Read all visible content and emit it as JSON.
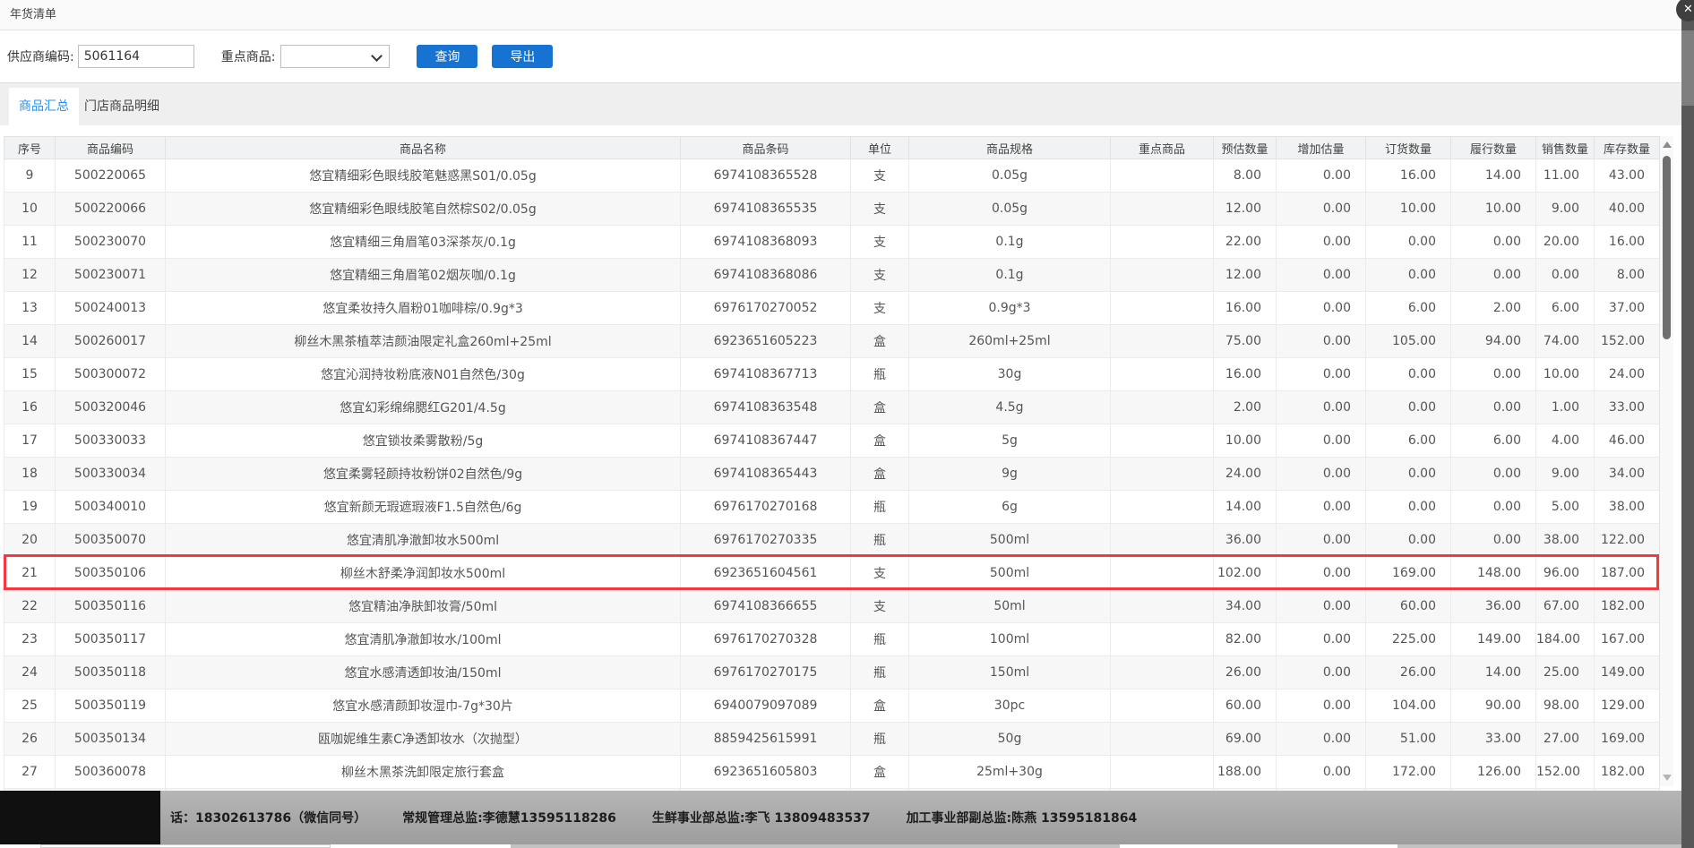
{
  "window": {
    "title": "年货清单",
    "close_icon": "✕"
  },
  "toolbar": {
    "supplier_label": "供应商编码:",
    "supplier_value": "5061164",
    "key_product_label": "重点商品:",
    "key_product_selected": "",
    "query_button": "查询",
    "export_button": "导出"
  },
  "tabs": [
    {
      "label": "商品汇总",
      "active": true
    },
    {
      "label": "门店商品明细",
      "active": false
    }
  ],
  "table": {
    "columns": [
      "序号",
      "商品编码",
      "商品名称",
      "商品条码",
      "单位",
      "商品规格",
      "重点商品",
      "预估数量",
      "增加估量",
      "订货数量",
      "履行数量",
      "销售数量",
      "库存数量"
    ],
    "highlight_row": "21",
    "rows": [
      [
        "9",
        "500220065",
        "悠宜精细彩色眼线胶笔魅惑黑S01/0.05g",
        "6974108365528",
        "支",
        "0.05g",
        "",
        "8.00",
        "0.00",
        "16.00",
        "14.00",
        "11.00",
        "43.00"
      ],
      [
        "10",
        "500220066",
        "悠宜精细彩色眼线胶笔自然棕S02/0.05g",
        "6974108365535",
        "支",
        "0.05g",
        "",
        "12.00",
        "0.00",
        "10.00",
        "10.00",
        "9.00",
        "40.00"
      ],
      [
        "11",
        "500230070",
        "悠宜精细三角眉笔03深茶灰/0.1g",
        "6974108368093",
        "支",
        "0.1g",
        "",
        "22.00",
        "0.00",
        "0.00",
        "0.00",
        "20.00",
        "16.00"
      ],
      [
        "12",
        "500230071",
        "悠宜精细三角眉笔02烟灰咖/0.1g",
        "6974108368086",
        "支",
        "0.1g",
        "",
        "12.00",
        "0.00",
        "0.00",
        "0.00",
        "0.00",
        "8.00"
      ],
      [
        "13",
        "500240013",
        "悠宜柔妆持久眉粉01咖啡棕/0.9g*3",
        "6976170270052",
        "支",
        "0.9g*3",
        "",
        "16.00",
        "0.00",
        "6.00",
        "2.00",
        "6.00",
        "37.00"
      ],
      [
        "14",
        "500260017",
        "柳丝木黑茶植萃洁颜油限定礼盒260ml+25ml",
        "6923651605223",
        "盒",
        "260ml+25ml",
        "",
        "75.00",
        "0.00",
        "105.00",
        "94.00",
        "74.00",
        "152.00"
      ],
      [
        "15",
        "500300072",
        "悠宜沁润持妆粉底液N01自然色/30g",
        "6974108367713",
        "瓶",
        "30g",
        "",
        "16.00",
        "0.00",
        "0.00",
        "0.00",
        "10.00",
        "24.00"
      ],
      [
        "16",
        "500320046",
        "悠宜幻彩绵绵腮红G201/4.5g",
        "6974108363548",
        "盒",
        "4.5g",
        "",
        "2.00",
        "0.00",
        "0.00",
        "0.00",
        "1.00",
        "33.00"
      ],
      [
        "17",
        "500330033",
        "悠宜锁妆柔雾散粉/5g",
        "6974108367447",
        "盒",
        "5g",
        "",
        "10.00",
        "0.00",
        "6.00",
        "6.00",
        "4.00",
        "46.00"
      ],
      [
        "18",
        "500330034",
        "悠宜柔雾轻颜持妆粉饼02自然色/9g",
        "6974108365443",
        "盒",
        "9g",
        "",
        "24.00",
        "0.00",
        "0.00",
        "0.00",
        "9.00",
        "34.00"
      ],
      [
        "19",
        "500340010",
        "悠宜新颜无瑕遮瑕液F1.5自然色/6g",
        "6976170270168",
        "瓶",
        "6g",
        "",
        "14.00",
        "0.00",
        "0.00",
        "0.00",
        "5.00",
        "38.00"
      ],
      [
        "20",
        "500350070",
        "悠宜清肌净澈卸妆水500ml",
        "6976170270335",
        "瓶",
        "500ml",
        "",
        "36.00",
        "0.00",
        "0.00",
        "0.00",
        "38.00",
        "122.00"
      ],
      [
        "21",
        "500350106",
        "柳丝木舒柔净润卸妆水500ml",
        "6923651604561",
        "支",
        "500ml",
        "",
        "102.00",
        "0.00",
        "169.00",
        "148.00",
        "96.00",
        "187.00"
      ],
      [
        "22",
        "500350116",
        "悠宜精油净肤卸妆膏/50ml",
        "6974108366655",
        "支",
        "50ml",
        "",
        "34.00",
        "0.00",
        "60.00",
        "36.00",
        "67.00",
        "182.00"
      ],
      [
        "23",
        "500350117",
        "悠宜清肌净澈卸妆水/100ml",
        "6976170270328",
        "瓶",
        "100ml",
        "",
        "82.00",
        "0.00",
        "225.00",
        "149.00",
        "184.00",
        "167.00"
      ],
      [
        "24",
        "500350118",
        "悠宜水感清透卸妆油/150ml",
        "6976170270175",
        "瓶",
        "150ml",
        "",
        "26.00",
        "0.00",
        "26.00",
        "14.00",
        "25.00",
        "149.00"
      ],
      [
        "25",
        "500350119",
        "悠宜水感清颜卸妆湿巾-7g*30片",
        "6940079097089",
        "盒",
        "30pc",
        "",
        "60.00",
        "0.00",
        "104.00",
        "90.00",
        "98.00",
        "129.00"
      ],
      [
        "26",
        "500350134",
        "瓯咖妮维生素C净透卸妆水（次抛型）",
        "8859425615991",
        "瓶",
        "50g",
        "",
        "69.00",
        "0.00",
        "51.00",
        "33.00",
        "27.00",
        "169.00"
      ],
      [
        "27",
        "500360078",
        "柳丝木黑茶洗卸限定旅行套盒",
        "6923651605803",
        "盒",
        "25ml+30g",
        "",
        "188.00",
        "0.00",
        "172.00",
        "126.00",
        "152.00",
        "182.00"
      ]
    ]
  },
  "footer": {
    "contacts": [
      "话：18302613786（微信同号）",
      "常规管理总监:李德慧13595118286",
      "生鲜事业部总监:李飞 13809483537",
      "加工事业部副总监:陈燕 13595181864"
    ]
  },
  "colors": {
    "accent_blue": "#1673d2",
    "active_tab_text": "#2a8ff7",
    "highlight_red": "#f5383e",
    "footer_gray": "#a8a8a8"
  }
}
